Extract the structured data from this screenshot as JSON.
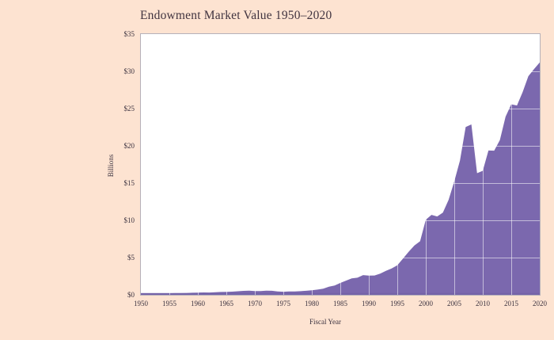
{
  "title": "Endowment Market Value 1950–2020",
  "y_axis": {
    "title": "Billions",
    "ticks": [
      "$35",
      "$30",
      "$25",
      "$20",
      "$15",
      "$10",
      "$5",
      "$0"
    ],
    "tick_values": [
      35,
      30,
      25,
      20,
      15,
      10,
      5,
      0
    ]
  },
  "x_axis": {
    "title": "Fiscal Year",
    "ticks": [
      "1950",
      "1955",
      "1960",
      "1965",
      "1970",
      "1975",
      "1980",
      "1985",
      "1990",
      "1995",
      "2000",
      "2005",
      "2010",
      "2015",
      "2020"
    ],
    "tick_values": [
      1950,
      1955,
      1960,
      1965,
      1970,
      1975,
      1980,
      1985,
      1990,
      1995,
      2000,
      2005,
      2010,
      2015,
      2020
    ]
  },
  "colors": {
    "background": "#fde3d1",
    "plot_background": "#ffffff",
    "area_fill": "#7b68ae",
    "baseline": "#7463a8",
    "gridline": "rgba(255,255,255,0.55)",
    "frame": "#b5b1ba",
    "text": "#3c3340",
    "title_text": "#413440"
  },
  "chart_data": {
    "type": "area",
    "title": "Endowment Market Value 1950–2020",
    "xlabel": "Fiscal Year",
    "ylabel": "Billions",
    "xlim": [
      1950,
      2020
    ],
    "ylim": [
      0,
      35
    ],
    "x_tick_interval": 5,
    "y_tick_interval": 5,
    "grid": true,
    "legend": false,
    "units": "USD billions",
    "years": [
      1950,
      1951,
      1952,
      1953,
      1954,
      1955,
      1956,
      1957,
      1958,
      1959,
      1960,
      1961,
      1962,
      1963,
      1964,
      1965,
      1966,
      1967,
      1968,
      1969,
      1970,
      1971,
      1972,
      1973,
      1974,
      1975,
      1976,
      1977,
      1978,
      1979,
      1980,
      1981,
      1982,
      1983,
      1984,
      1985,
      1986,
      1987,
      1988,
      1989,
      1990,
      1991,
      1992,
      1993,
      1994,
      1995,
      1996,
      1997,
      1998,
      1999,
      2000,
      2001,
      2002,
      2003,
      2004,
      2005,
      2006,
      2007,
      2008,
      2009,
      2010,
      2011,
      2012,
      2013,
      2014,
      2015,
      2016,
      2017,
      2018,
      2019,
      2020
    ],
    "values": [
      0.13,
      0.14,
      0.15,
      0.16,
      0.18,
      0.2,
      0.22,
      0.22,
      0.24,
      0.28,
      0.3,
      0.32,
      0.31,
      0.34,
      0.38,
      0.4,
      0.43,
      0.48,
      0.53,
      0.56,
      0.5,
      0.51,
      0.56,
      0.54,
      0.46,
      0.42,
      0.45,
      0.46,
      0.49,
      0.54,
      0.61,
      0.7,
      0.82,
      1.1,
      1.25,
      1.6,
      1.9,
      2.2,
      2.3,
      2.65,
      2.57,
      2.6,
      2.85,
      3.22,
      3.53,
      3.96,
      4.86,
      5.79,
      6.62,
      7.19,
      10.08,
      10.73,
      10.52,
      11.03,
      12.75,
      15.22,
      18.03,
      22.53,
      22.87,
      16.33,
      16.65,
      19.37,
      19.35,
      20.78,
      23.9,
      25.57,
      25.41,
      27.22,
      29.35,
      30.31,
      31.2
    ]
  }
}
